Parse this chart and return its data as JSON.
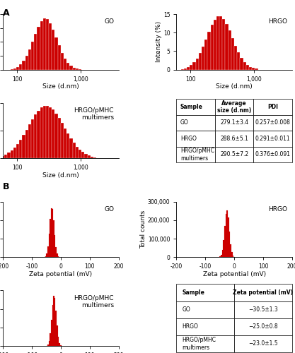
{
  "particle_size": {
    "go": {
      "mean": 279.1,
      "log_std": 0.18,
      "peak": 18.5,
      "ylim": 20
    },
    "hrgo": {
      "mean": 288.6,
      "log_std": 0.2,
      "peak": 14.5,
      "ylim": 15
    },
    "hrgo_pmhc": {
      "mean": 290.5,
      "log_std": 0.28,
      "peak": 9.5,
      "ylim": 10
    }
  },
  "zeta": {
    "go": {
      "mean": -30.5,
      "std": 8.0,
      "peak": 270000
    },
    "hrgo": {
      "mean": -25.0,
      "std": 8.0,
      "peak": 255000
    },
    "hrgo_pmhc": {
      "mean": -23.0,
      "std": 8.0,
      "peak": 275000
    }
  },
  "bar_color": "#cc0000",
  "table_a": {
    "headers": [
      "Sample",
      "Average\nsize (d.nm)",
      "PDI"
    ],
    "rows": [
      [
        "GO",
        "279.1±3.4",
        "0.257±0.008"
      ],
      [
        "HRGO",
        "288.6±5.1",
        "0.291±0.011"
      ],
      [
        "HRGO/pMHC\nmultimers",
        "290.5±7.2",
        "0.376±0.091"
      ]
    ]
  },
  "table_b": {
    "headers": [
      "Sample",
      "Zeta potential (mV)"
    ],
    "rows": [
      [
        "GO",
        "−30.5±1.3"
      ],
      [
        "HRGO",
        "−25.0±0.8"
      ],
      [
        "HRGO/pMHC\nmultimers",
        "−23.0±1.5"
      ]
    ]
  },
  "label_A": "A",
  "label_B": "B",
  "go_label": "GO",
  "hrgo_label": "HRGO",
  "hrgo_pmhc_label": "HRGO/pMHC\nmultimers",
  "size_xlabel": "Size (d.nm)",
  "size_ylabel": "Intensity (%)",
  "zeta_xlabel": "Zeta potential (mV)",
  "zeta_ylabel": "Total counts"
}
